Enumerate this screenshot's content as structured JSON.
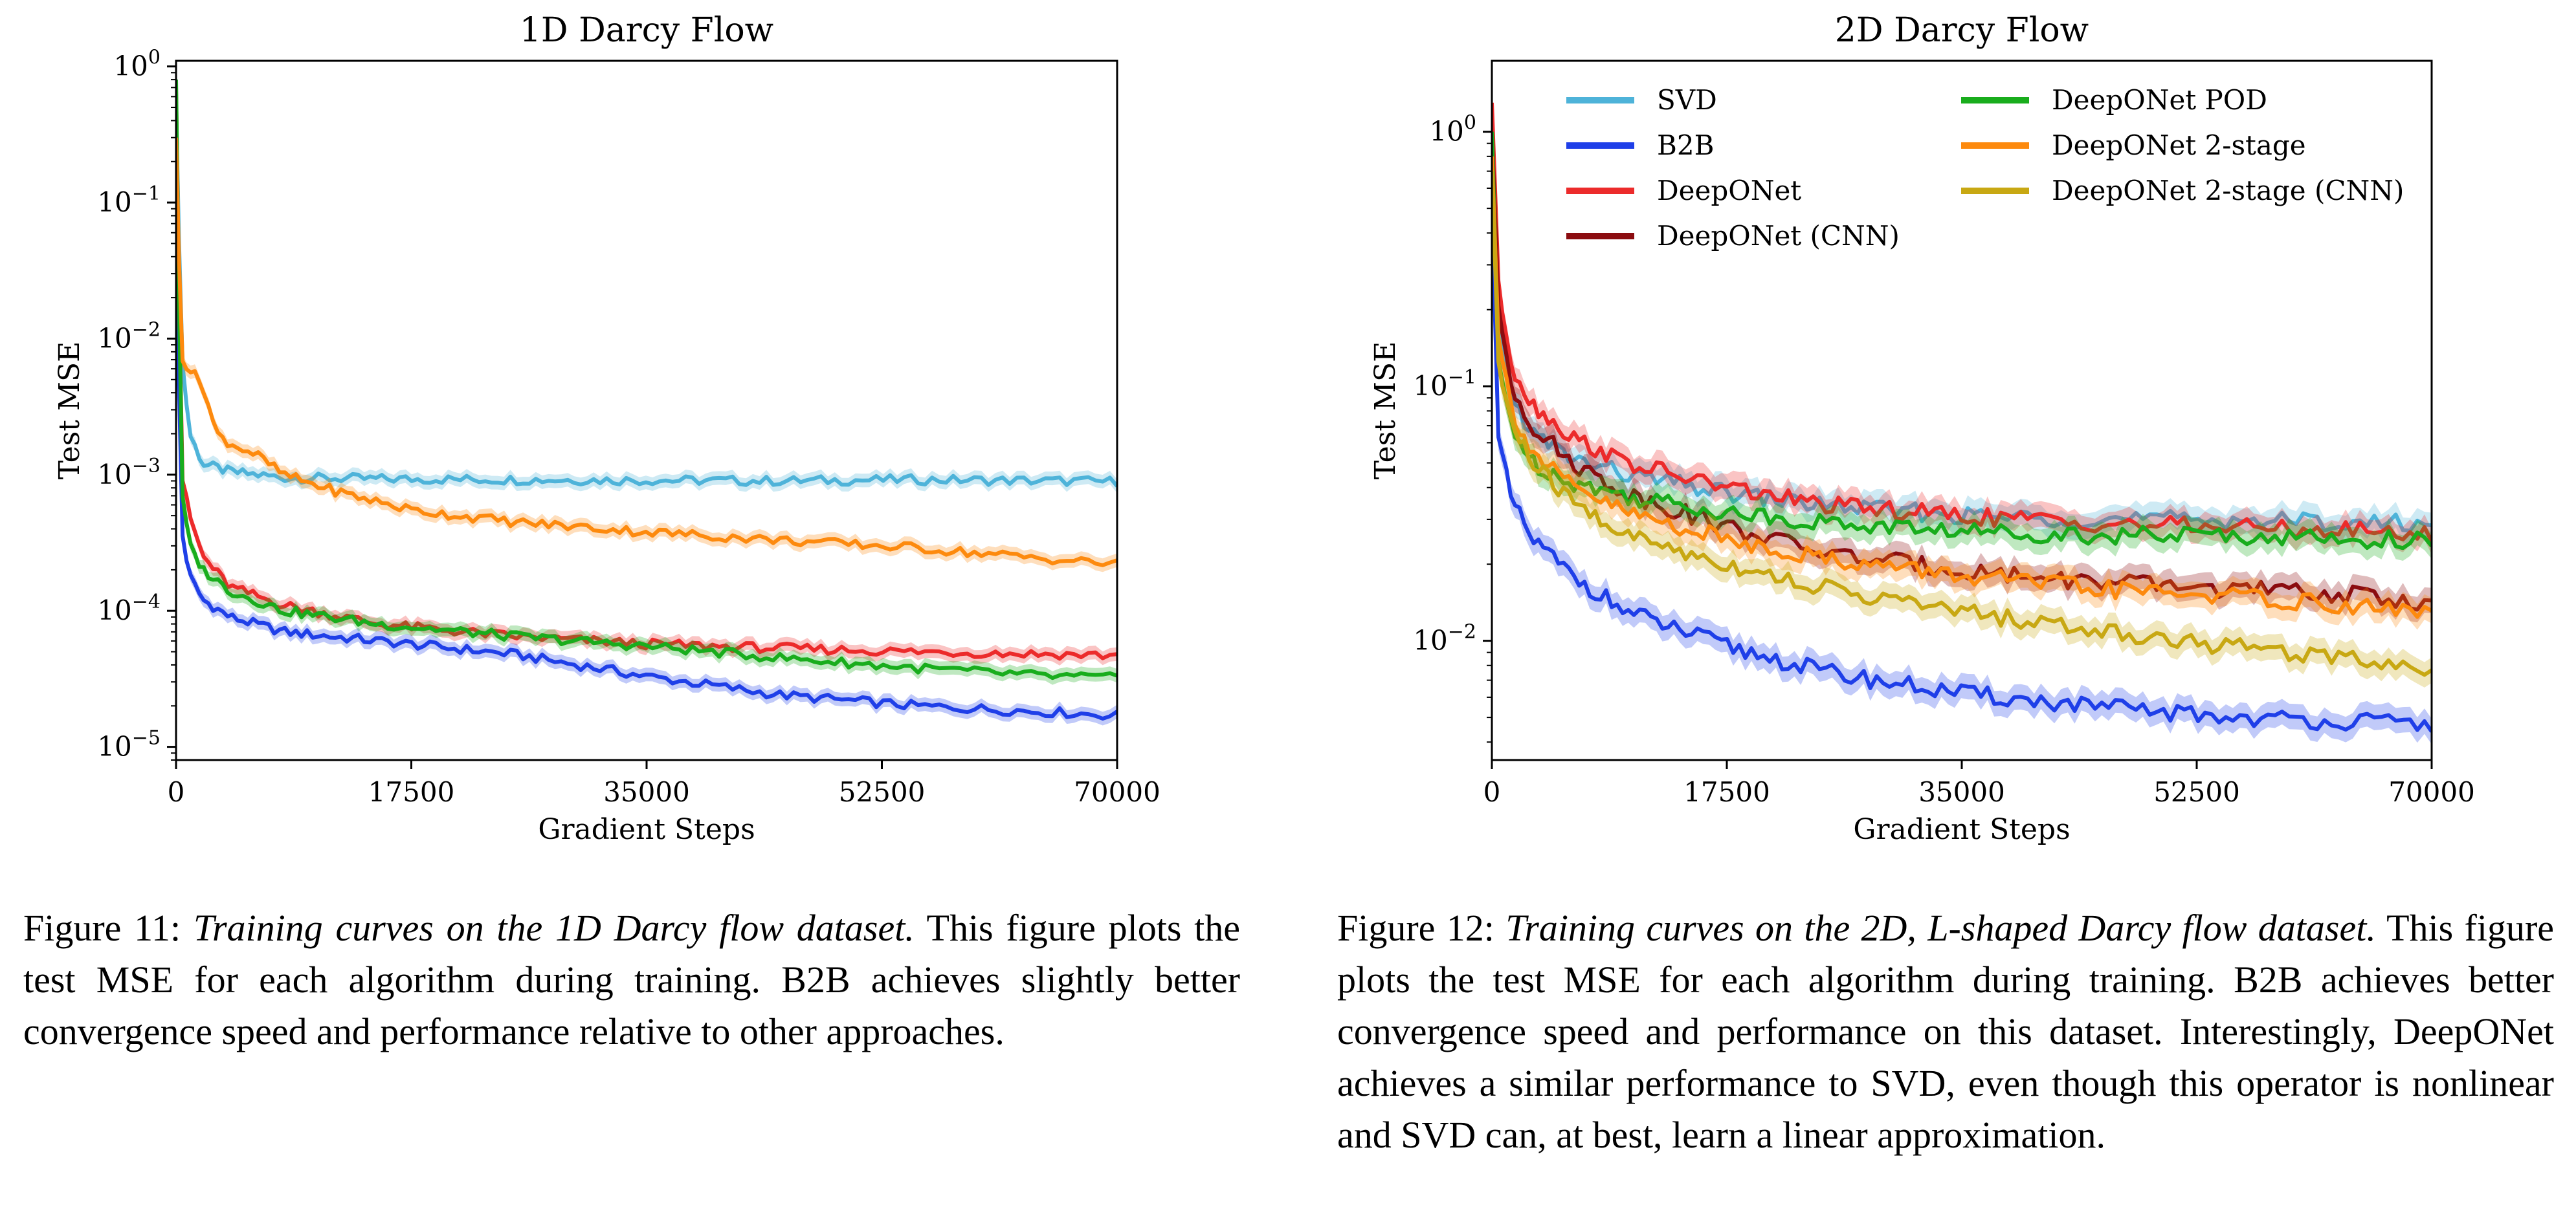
{
  "colors": {
    "SVD": "#4eb3d9",
    "B2B": "#1f3fe8",
    "DeepONet": "#ec2b2b",
    "DeepONet (CNN)": "#8b0c10",
    "DeepONet POD": "#19ad1d",
    "DeepONet 2-stage": "#fd8a0e",
    "DeepONet 2-stage (CNN)": "#c8a813"
  },
  "chart_data": [
    {
      "type": "line",
      "title": "1D Darcy Flow",
      "xlabel": "Gradient Steps",
      "ylabel": "Test MSE",
      "yscale": "log",
      "xlim": [
        0,
        70000
      ],
      "ylim": [
        8e-06,
        1.1
      ],
      "x_ticks": [
        0,
        17500,
        35000,
        52500,
        70000
      ],
      "x_tick_labels": [
        "0",
        "17500",
        "35000",
        "52500",
        "70000"
      ],
      "y_ticks": [
        1,
        0.1,
        0.01,
        0.001,
        0.0001,
        1e-05
      ],
      "y_tick_labels": [
        {
          "base": "10",
          "exp": "0"
        },
        {
          "base": "10",
          "exp": "−1"
        },
        {
          "base": "10",
          "exp": "−2"
        },
        {
          "base": "10",
          "exp": "−3"
        },
        {
          "base": "10",
          "exp": "−4"
        },
        {
          "base": "10",
          "exp": "−5"
        }
      ],
      "grid": false,
      "legend": "none",
      "series": [
        {
          "name": "SVD",
          "x": [
            0,
            400,
            1000,
            2000,
            4000,
            8000,
            15000,
            25000,
            35000,
            45000,
            55000,
            65000,
            70000
          ],
          "y": [
            0.5,
            0.008,
            0.002,
            0.0012,
            0.00105,
            0.00095,
            0.00093,
            0.00092,
            0.00091,
            0.0009,
            0.00092,
            0.0009,
            0.00089
          ]
        },
        {
          "name": "B2B",
          "x": [
            0,
            400,
            1000,
            2000,
            4000,
            8000,
            15000,
            25000,
            35000,
            45000,
            55000,
            65000,
            70000
          ],
          "y": [
            0.08,
            0.0004,
            0.00018,
            0.00012,
            9e-05,
            7e-05,
            6e-05,
            4.8e-05,
            3.3e-05,
            2.4e-05,
            2e-05,
            1.8e-05,
            1.7e-05
          ]
        },
        {
          "name": "DeepONet",
          "x": [
            0,
            400,
            1000,
            2000,
            4000,
            8000,
            15000,
            25000,
            35000,
            45000,
            55000,
            65000,
            70000
          ],
          "y": [
            0.7,
            0.001,
            0.0005,
            0.00025,
            0.00015,
            0.00011,
            8e-05,
            6.5e-05,
            5.7e-05,
            5.3e-05,
            5e-05,
            4.8e-05,
            4.7e-05
          ]
        },
        {
          "name": "DeepONet POD",
          "x": [
            0,
            400,
            1000,
            2000,
            4000,
            8000,
            15000,
            25000,
            35000,
            45000,
            55000,
            65000,
            70000
          ],
          "y": [
            0.8,
            0.0008,
            0.0003,
            0.0002,
            0.00014,
            0.0001,
            8e-05,
            6.5e-05,
            5.5e-05,
            4.5e-05,
            3.8e-05,
            3.3e-05,
            3.2e-05
          ]
        },
        {
          "name": "DeepONet 2-stage",
          "x": [
            0,
            400,
            1000,
            2000,
            3000,
            4000,
            6000,
            8000,
            12000,
            17500,
            25000,
            35000,
            45000,
            55000,
            65000,
            70000
          ],
          "y": [
            0.3,
            0.007,
            0.006,
            0.0045,
            0.002,
            0.0017,
            0.0014,
            0.001,
            0.00075,
            0.00055,
            0.00045,
            0.00038,
            0.00033,
            0.00029,
            0.00024,
            0.00022
          ]
        }
      ]
    },
    {
      "type": "line",
      "title": "2D Darcy Flow",
      "xlabel": "Gradient Steps",
      "ylabel": "Test MSE",
      "yscale": "log",
      "xlim": [
        0,
        70000
      ],
      "ylim": [
        0.0034,
        1.9
      ],
      "x_ticks": [
        0,
        17500,
        35000,
        52500,
        70000
      ],
      "x_tick_labels": [
        "0",
        "17500",
        "35000",
        "52500",
        "70000"
      ],
      "y_ticks": [
        1,
        0.1,
        0.01
      ],
      "y_tick_labels": [
        {
          "base": "10",
          "exp": "0"
        },
        {
          "base": "10",
          "exp": "−1"
        },
        {
          "base": "10",
          "exp": "−2"
        }
      ],
      "grid": false,
      "legend": "top, two columns",
      "legend_entries": [
        "SVD",
        "B2B",
        "DeepONet",
        "DeepONet (CNN)",
        "DeepONet POD",
        "DeepONet 2-stage",
        "DeepONet 2-stage (CNN)"
      ],
      "series": [
        {
          "name": "SVD",
          "x": [
            0,
            500,
            1500,
            3000,
            6000,
            10000,
            17500,
            25000,
            35000,
            45000,
            55000,
            65000,
            70000
          ],
          "y": [
            1.0,
            0.18,
            0.09,
            0.065,
            0.052,
            0.045,
            0.038,
            0.034,
            0.031,
            0.03,
            0.03,
            0.029,
            0.029
          ]
        },
        {
          "name": "B2B",
          "x": [
            0,
            500,
            1500,
            3000,
            6000,
            10000,
            17500,
            25000,
            35000,
            45000,
            55000,
            65000,
            70000
          ],
          "y": [
            0.5,
            0.06,
            0.035,
            0.025,
            0.018,
            0.013,
            0.0095,
            0.0075,
            0.0062,
            0.0055,
            0.005,
            0.0048,
            0.0047
          ]
        },
        {
          "name": "DeepONet",
          "x": [
            0,
            500,
            1500,
            3000,
            6000,
            10000,
            17500,
            25000,
            35000,
            45000,
            55000,
            65000,
            70000
          ],
          "y": [
            1.3,
            0.25,
            0.12,
            0.085,
            0.063,
            0.05,
            0.04,
            0.034,
            0.031,
            0.029,
            0.028,
            0.027,
            0.026
          ]
        },
        {
          "name": "DeepONet (CNN)",
          "x": [
            0,
            500,
            1500,
            3000,
            6000,
            10000,
            17500,
            25000,
            35000,
            45000,
            55000,
            65000,
            70000
          ],
          "y": [
            1.0,
            0.2,
            0.1,
            0.07,
            0.05,
            0.038,
            0.028,
            0.022,
            0.019,
            0.017,
            0.016,
            0.015,
            0.014
          ]
        },
        {
          "name": "DeepONet POD",
          "x": [
            0,
            500,
            1500,
            3000,
            6000,
            10000,
            17500,
            25000,
            35000,
            45000,
            55000,
            65000,
            70000
          ],
          "y": [
            1.0,
            0.12,
            0.07,
            0.05,
            0.042,
            0.037,
            0.032,
            0.029,
            0.027,
            0.026,
            0.026,
            0.025,
            0.025
          ]
        },
        {
          "name": "DeepONet 2-stage",
          "x": [
            0,
            500,
            1500,
            3000,
            6000,
            10000,
            17500,
            25000,
            35000,
            45000,
            55000,
            65000,
            70000
          ],
          "y": [
            0.8,
            0.15,
            0.08,
            0.055,
            0.04,
            0.032,
            0.025,
            0.021,
            0.018,
            0.016,
            0.015,
            0.0135,
            0.013
          ]
        },
        {
          "name": "DeepONet 2-stage (CNN)",
          "x": [
            0,
            500,
            1500,
            3000,
            6000,
            10000,
            17500,
            25000,
            35000,
            45000,
            55000,
            65000,
            70000
          ],
          "y": [
            0.7,
            0.12,
            0.07,
            0.05,
            0.035,
            0.026,
            0.02,
            0.016,
            0.013,
            0.011,
            0.0095,
            0.0085,
            0.0078
          ]
        }
      ]
    }
  ],
  "captions": [
    {
      "label": "Figure 11:",
      "emphasis": "Training curves on the 1D Darcy flow dataset.",
      "body": "This figure plots the test MSE for each algorithm during training. B2B achieves slightly better convergence speed and performance relative to other approaches."
    },
    {
      "label": "Figure 12:",
      "emphasis": "Training curves on the 2D, L-shaped Darcy flow dataset.",
      "body": "This figure plots the test MSE for each algorithm during training. B2B achieves better convergence speed and performance on this dataset. Interestingly, DeepONet achieves a similar performance to SVD, even though this operator is nonlinear and SVD can, at best, learn a linear approximation."
    }
  ]
}
